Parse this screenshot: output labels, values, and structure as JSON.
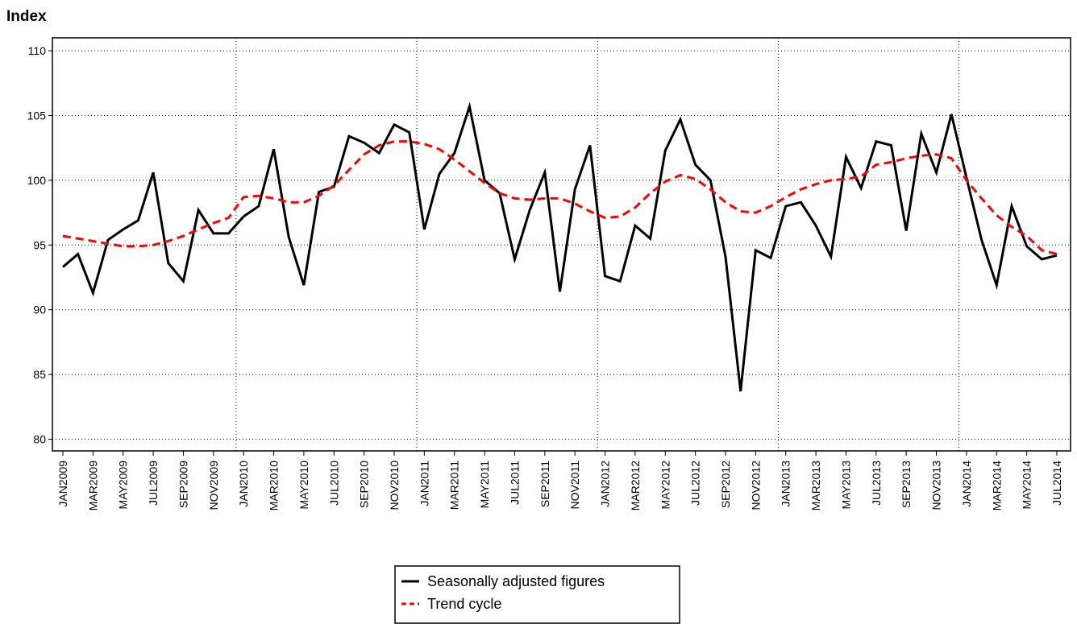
{
  "chart_data": {
    "type": "line",
    "title": "Index",
    "categories": [
      "JAN2009",
      null,
      "MAR2009",
      null,
      "MAY2009",
      null,
      "JUL2009",
      null,
      "SEP2009",
      null,
      "NOV2009",
      null,
      "JAN2010",
      null,
      "MAR2010",
      null,
      "MAY2010",
      null,
      "JUL2010",
      null,
      "SEP2010",
      null,
      "NOV2010",
      null,
      "JAN2011",
      null,
      "MAR2011",
      null,
      "MAY2011",
      null,
      "JUL2011",
      null,
      "SEP2011",
      null,
      "NOV2011",
      null,
      "JAN2012",
      null,
      "MAR2012",
      null,
      "MAY2012",
      null,
      "JUL2012",
      null,
      "SEP2012",
      null,
      "NOV2012",
      null,
      "JAN2013",
      null,
      "MAR2013",
      null,
      "MAY2013",
      null,
      "JUL2013",
      null,
      "SEP2013",
      null,
      "NOV2013",
      null,
      "JAN2014",
      null,
      "MAR2014",
      null,
      "MAY2014",
      null,
      "JUL2014"
    ],
    "series": [
      {
        "name": "Seasonally adjusted figures",
        "color": "#000000",
        "dash": false,
        "values": [
          93.3,
          94.3,
          91.3,
          95.4,
          96.2,
          96.9,
          100.6,
          93.6,
          92.2,
          97.7,
          95.9,
          95.9,
          97.2,
          98.0,
          102.4,
          95.6,
          91.9,
          99.1,
          99.5,
          103.4,
          102.9,
          102.1,
          104.3,
          103.7,
          96.2,
          100.5,
          102.1,
          105.7,
          100.0,
          99.0,
          93.9,
          97.7,
          100.6,
          91.4,
          99.3,
          102.7,
          92.6,
          92.2,
          96.5,
          95.5,
          102.3,
          104.7,
          101.2,
          100.0,
          94.1,
          83.7,
          94.6,
          94.0,
          98.0,
          98.3,
          96.5,
          94.1,
          101.8,
          99.4,
          103.0,
          102.7,
          96.1,
          103.6,
          100.6,
          105.1,
          100.2,
          95.4,
          91.9,
          98.0,
          94.9,
          93.9,
          94.2
        ]
      },
      {
        "name": "Trend cycle",
        "color": "#ff0000",
        "dash": true,
        "values": [
          95.7,
          95.5,
          95.3,
          95.1,
          94.9,
          94.9,
          95.0,
          95.3,
          95.7,
          96.2,
          96.7,
          97.1,
          98.7,
          98.8,
          98.6,
          98.3,
          98.3,
          98.8,
          99.6,
          100.8,
          102.0,
          102.7,
          103.0,
          103.0,
          102.8,
          102.4,
          101.6,
          100.7,
          99.8,
          99.0,
          98.6,
          98.5,
          98.6,
          98.6,
          98.2,
          97.6,
          97.1,
          97.2,
          97.9,
          99.0,
          99.9,
          100.4,
          100.1,
          99.3,
          98.3,
          97.6,
          97.5,
          98.0,
          98.7,
          99.3,
          99.7,
          100.0,
          100.1,
          100.3,
          101.2,
          101.4,
          101.7,
          101.9,
          102.0,
          101.7,
          100.0,
          98.6,
          97.3,
          96.4,
          95.7,
          94.6,
          94.3
        ]
      }
    ],
    "ylim": [
      79.1,
      111
    ],
    "yticks": [
      80,
      85,
      90,
      95,
      100,
      105,
      110
    ],
    "grid": true
  }
}
